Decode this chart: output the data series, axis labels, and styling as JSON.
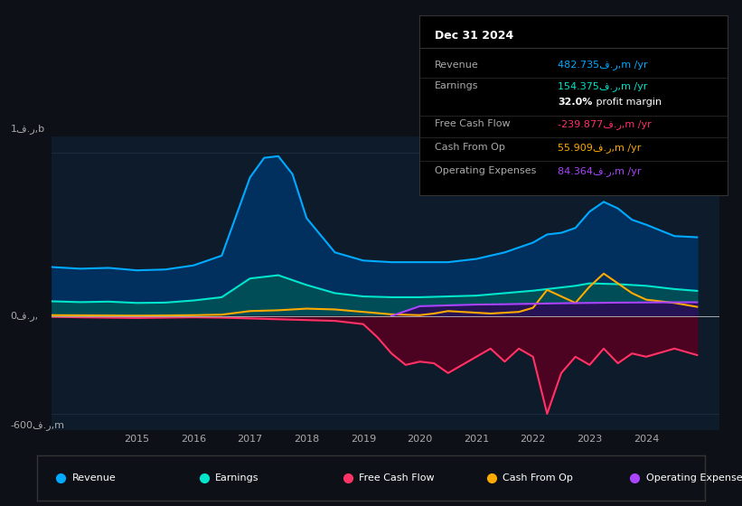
{
  "bg_color": "#0d1117",
  "plot_bg_color": "#0d1b2a",
  "info_box_title": "Dec 31 2024",
  "info_box_rows": [
    {
      "label": "Revenue",
      "value": "482.735ف.ر,m /yr",
      "color": "#00aaff"
    },
    {
      "label": "Earnings",
      "value": "154.375ف.ر,m /yr",
      "color": "#00e5cc"
    },
    {
      "label": "",
      "value": "32.0% profit margin",
      "color": "#ffffff",
      "bold_pct": true
    },
    {
      "label": "Free Cash Flow",
      "value": "-239.877ف.ر,m /yr",
      "color": "#ff3366"
    },
    {
      "label": "Cash From Op",
      "value": "55.909ف.ر,m /yr",
      "color": "#ffaa00"
    },
    {
      "label": "Operating Expenses",
      "value": "84.364ف.ر,m /yr",
      "color": "#aa44ff"
    }
  ],
  "ylabel_top": "1ف.ر,b",
  "ylabel_bottom": "-600ف.ر,m",
  "ytick_zero": "0ف.ر,",
  "xlim": [
    2013.5,
    2025.3
  ],
  "ylim": [
    -700,
    1100
  ],
  "ytick_positions": [
    -600,
    0,
    1000
  ],
  "xticks": [
    2015,
    2016,
    2017,
    2018,
    2019,
    2020,
    2021,
    2022,
    2023,
    2024
  ],
  "grid_color": "#1e2d3d",
  "zero_line_color": "#aaaaaa",
  "revenue_color": "#00aaff",
  "earnings_color": "#00e5cc",
  "fcf_color": "#ff3366",
  "cashop_color": "#ffaa00",
  "opex_color": "#aa44ff",
  "revenue_fill_color": "#003366",
  "earnings_fill_color": "#005555",
  "fcf_fill_color": "#550022",
  "opex_fill_color": "#330055",
  "legend_bg": "#0d1117",
  "legend_border": "#333333",
  "revenue_data": {
    "x": [
      2013.5,
      2014,
      2014.5,
      2015,
      2015.5,
      2016,
      2016.5,
      2017,
      2017.25,
      2017.5,
      2017.75,
      2018,
      2018.5,
      2019,
      2019.5,
      2020,
      2020.5,
      2021,
      2021.5,
      2022,
      2022.25,
      2022.5,
      2022.75,
      2023,
      2023.25,
      2023.5,
      2023.75,
      2024,
      2024.5,
      2024.9
    ],
    "y": [
      300,
      290,
      295,
      280,
      285,
      310,
      370,
      850,
      970,
      980,
      870,
      600,
      390,
      340,
      330,
      330,
      330,
      350,
      390,
      450,
      500,
      510,
      540,
      640,
      700,
      660,
      590,
      560,
      490,
      483
    ]
  },
  "earnings_data": {
    "x": [
      2013.5,
      2014,
      2014.5,
      2015,
      2015.5,
      2016,
      2016.5,
      2017,
      2017.5,
      2018,
      2018.5,
      2019,
      2019.5,
      2020,
      2020.5,
      2021,
      2021.5,
      2022,
      2022.25,
      2022.5,
      2022.75,
      2023,
      2023.5,
      2024,
      2024.5,
      2024.9
    ],
    "y": [
      90,
      85,
      88,
      80,
      82,
      95,
      115,
      230,
      250,
      190,
      140,
      120,
      115,
      115,
      120,
      125,
      140,
      155,
      165,
      175,
      185,
      200,
      195,
      185,
      165,
      154
    ]
  },
  "fcf_data": {
    "x": [
      2013.5,
      2014,
      2014.5,
      2015,
      2015.5,
      2016,
      2016.5,
      2017,
      2017.5,
      2018,
      2018.5,
      2019,
      2019.25,
      2019.5,
      2019.75,
      2020,
      2020.25,
      2020.5,
      2020.75,
      2021,
      2021.25,
      2021.5,
      2021.75,
      2022,
      2022.25,
      2022.5,
      2022.75,
      2023,
      2023.25,
      2023.5,
      2023.75,
      2024,
      2024.5,
      2024.9
    ],
    "y": [
      -5,
      -8,
      -10,
      -12,
      -10,
      -8,
      -10,
      -15,
      -20,
      -25,
      -30,
      -50,
      -130,
      -230,
      -300,
      -280,
      -290,
      -350,
      -300,
      -250,
      -200,
      -280,
      -200,
      -250,
      -600,
      -350,
      -250,
      -300,
      -200,
      -290,
      -230,
      -250,
      -200,
      -240
    ]
  },
  "cashop_data": {
    "x": [
      2013.5,
      2014,
      2014.5,
      2015,
      2015.5,
      2016,
      2016.5,
      2017,
      2017.5,
      2018,
      2018.5,
      2019,
      2019.5,
      2020,
      2020.25,
      2020.5,
      2020.75,
      2021,
      2021.25,
      2021.5,
      2021.75,
      2022,
      2022.25,
      2022.5,
      2022.75,
      2023,
      2023.25,
      2023.5,
      2023.75,
      2024,
      2024.5,
      2024.9
    ],
    "y": [
      5,
      4,
      3,
      2,
      3,
      5,
      8,
      30,
      35,
      45,
      40,
      25,
      10,
      5,
      15,
      30,
      25,
      20,
      15,
      20,
      25,
      50,
      160,
      120,
      80,
      180,
      260,
      200,
      140,
      100,
      80,
      56
    ]
  },
  "opex_data": {
    "x": [
      2019.5,
      2020,
      2020.5,
      2021,
      2021.5,
      2022,
      2022.5,
      2023,
      2023.5,
      2024,
      2024.5,
      2024.9
    ],
    "y": [
      0,
      60,
      65,
      70,
      72,
      75,
      78,
      80,
      82,
      83,
      84,
      84
    ]
  }
}
